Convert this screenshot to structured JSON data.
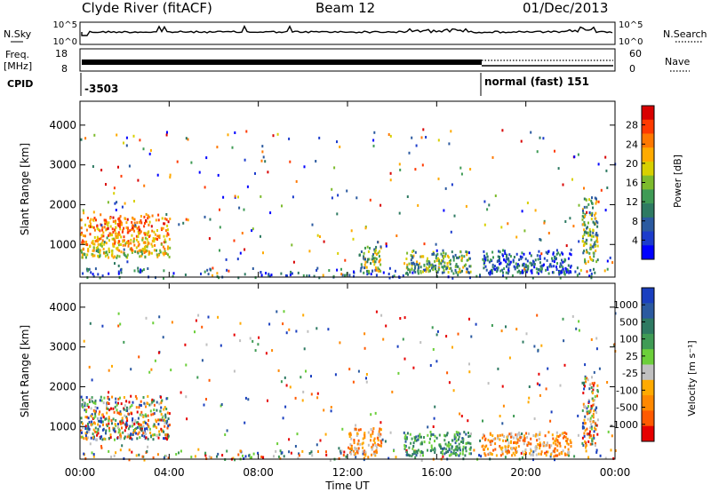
{
  "header": {
    "station": "Clyde River (fitACF)",
    "beam": "Beam 12",
    "date": "01/Dec/2013"
  },
  "nsky": {
    "label": "N.Sky",
    "right_label": "N.Search",
    "ticks_left": [
      "10^5",
      "10^0"
    ],
    "ticks_right": [
      "10^5",
      "10^0"
    ]
  },
  "freq": {
    "label_line1": "Freq.",
    "label_line2": "[MHz]",
    "right_label": "Nave",
    "ticks_left": [
      "18",
      "8"
    ],
    "ticks_right": [
      "60",
      "0"
    ]
  },
  "cpid": {
    "label": "CPID",
    "value1": "-3503",
    "value2": "normal (fast) 151"
  },
  "x_ticks": [
    "00:00",
    "04:00",
    "08:00",
    "12:00",
    "16:00",
    "20:00",
    "00:00"
  ],
  "x_label": "Time UT",
  "chart_data": [
    {
      "type": "heatmap",
      "name": "power",
      "xlabel": "Time UT",
      "ylabel": "Slant Range [km]",
      "xlim": [
        0,
        24
      ],
      "ylim": [
        180,
        4600
      ],
      "y_ticks": [
        "1000",
        "2000",
        "3000",
        "4000"
      ],
      "colorbar_label": "Power [dB]",
      "colorbar_ticks": [
        "28",
        "24",
        "20",
        "16",
        "12",
        "8",
        "4"
      ],
      "colorbar_colors": [
        "#d80000",
        "#ff3a00",
        "#ff7800",
        "#ffaa00",
        "#d8d000",
        "#7dbb2d",
        "#3f9b55",
        "#2e7a62",
        "#2b5aa0",
        "#1c3ccc",
        "#0000ff"
      ],
      "regions": [
        {
          "t0": 0.0,
          "t1": 4.0,
          "r0": 700,
          "r1": 1800,
          "intensity": "high"
        },
        {
          "t0": 0.0,
          "t1": 24.0,
          "r0": 180,
          "r1": 450,
          "intensity": "low"
        },
        {
          "t0": 12.5,
          "t1": 13.5,
          "r0": 300,
          "r1": 1000,
          "intensity": "medium"
        },
        {
          "t0": 14.5,
          "t1": 17.5,
          "r0": 300,
          "r1": 900,
          "intensity": "medium"
        },
        {
          "t0": 18.0,
          "t1": 22.0,
          "r0": 300,
          "r1": 900,
          "intensity": "low"
        },
        {
          "t0": 22.5,
          "t1": 23.2,
          "r0": 500,
          "r1": 2300,
          "intensity": "medium"
        }
      ]
    },
    {
      "type": "heatmap",
      "name": "velocity",
      "xlabel": "Time UT",
      "ylabel": "Slant Range [km]",
      "xlim": [
        0,
        24
      ],
      "ylim": [
        180,
        4600
      ],
      "y_ticks": [
        "1000",
        "2000",
        "3000",
        "4000"
      ],
      "colorbar_label": "Velocity [m s⁻¹]",
      "colorbar_ticks": [
        "1000",
        "500",
        "100",
        "25",
        "-25",
        "-100",
        "-500",
        "-1000"
      ],
      "colorbar_colors": [
        "#1a3fbf",
        "#2b5aa0",
        "#2e7a62",
        "#3f9b55",
        "#6ccf3a",
        "#c0c0c0",
        "#ffaa00",
        "#ff8800",
        "#ff5a00",
        "#e60000"
      ],
      "regions": [
        {
          "t0": 0.0,
          "t1": 4.0,
          "r0": 700,
          "r1": 1800,
          "mean": "mixed"
        },
        {
          "t0": 0.0,
          "t1": 24.0,
          "r0": 180,
          "r1": 450,
          "mean": "mixed"
        },
        {
          "t0": 12.0,
          "t1": 13.5,
          "r0": 300,
          "r1": 1000,
          "mean": "negative"
        },
        {
          "t0": 14.5,
          "t1": 17.5,
          "r0": 300,
          "r1": 900,
          "mean": "positive"
        },
        {
          "t0": 18.0,
          "t1": 22.0,
          "r0": 300,
          "r1": 900,
          "mean": "negative"
        },
        {
          "t0": 22.5,
          "t1": 23.2,
          "r0": 500,
          "r1": 2300,
          "mean": "mixed"
        }
      ]
    }
  ]
}
